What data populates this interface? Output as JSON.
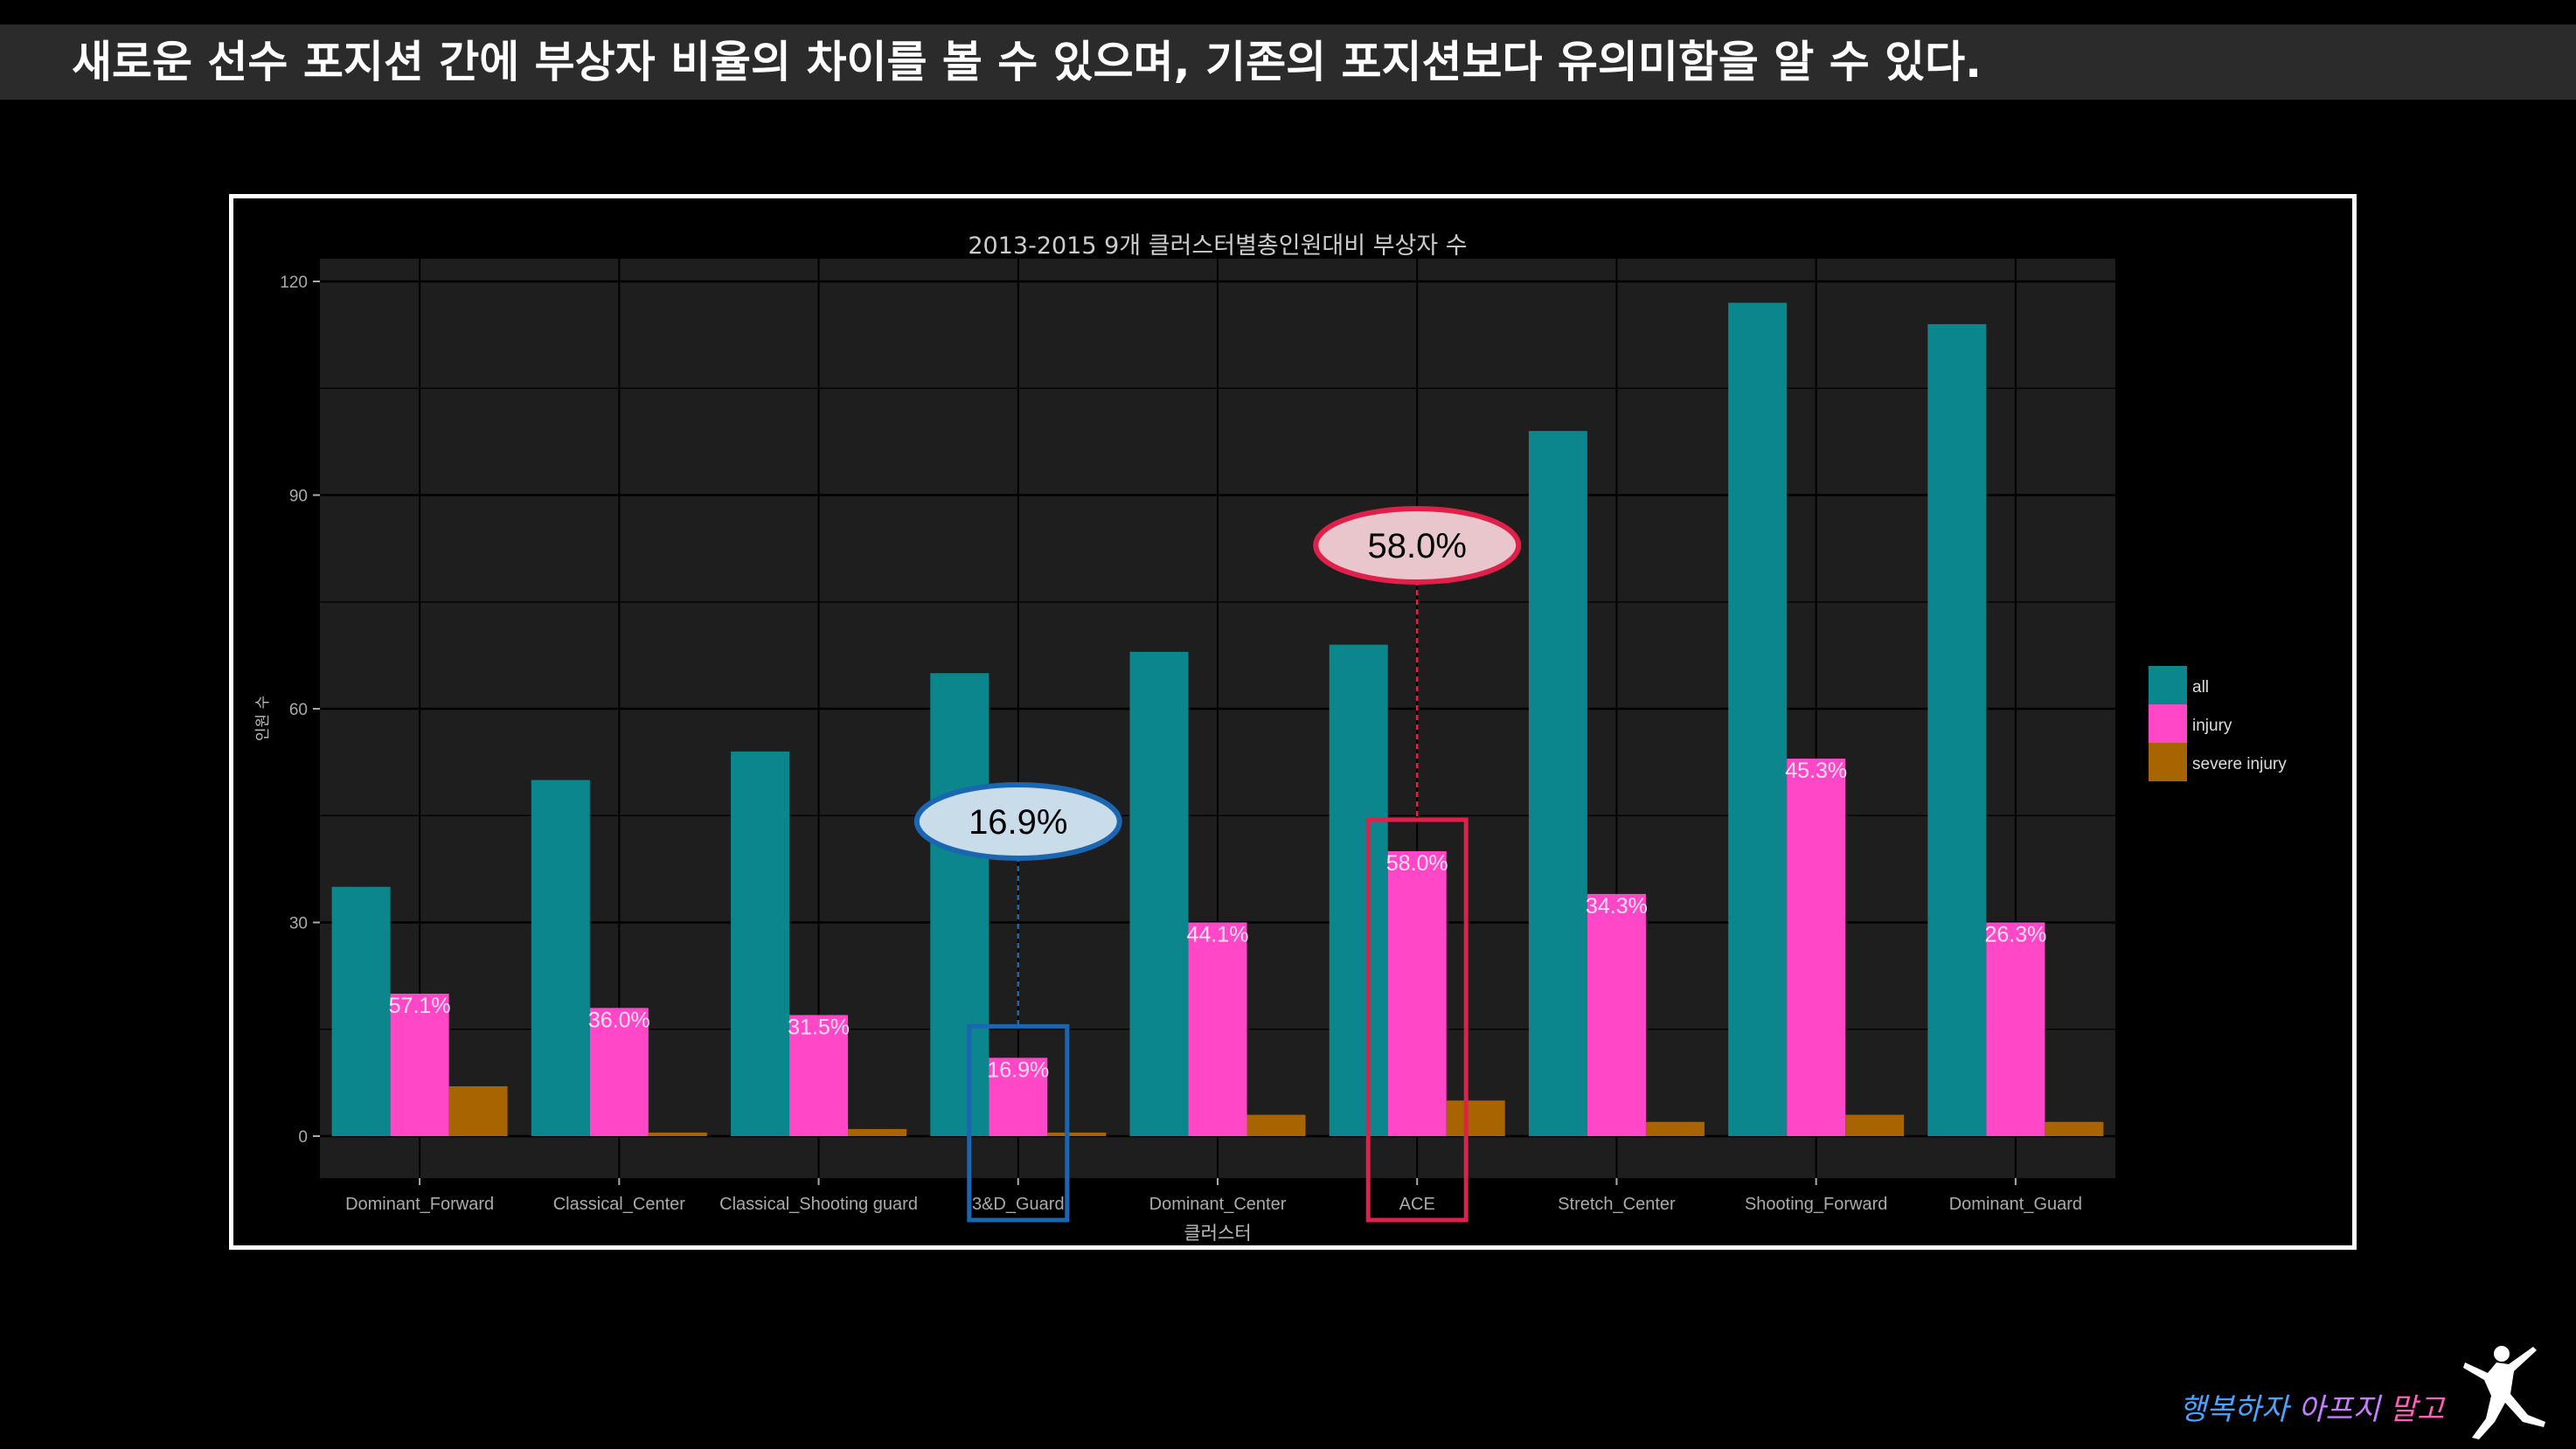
{
  "headline": "새로운 선수 포지션 간에 부상자 비율의 차이를 볼 수 있으며, 기존의 포지션보다 유의미함을 알 수 있다.",
  "colors": {
    "all": "#0a868c",
    "injury": "#ff47c8",
    "severe_injury": "#a86400",
    "panel": "#1e1e1e",
    "grid": "#000000",
    "highlight_blue": "#1a66b0",
    "highlight_red": "#e0204a"
  },
  "chart_data": {
    "type": "bar",
    "title": "2013-2015 9개 클러스터별총인원대비 부상자 수",
    "xlabel": "클러스터",
    "ylabel": "인원 수",
    "ylim": [
      0,
      120
    ],
    "yticks": [
      0,
      30,
      60,
      90,
      120
    ],
    "grid": true,
    "legend_position": "right",
    "categories": [
      "Dominant_Forward",
      "Classical_Center",
      "Classical_Shooting guard",
      "3&D_Guard",
      "Dominant_Center",
      "ACE",
      "Stretch_Center",
      "Shooting_Forward",
      "Dominant_Guard"
    ],
    "series": [
      {
        "name": "all",
        "values": [
          35,
          50,
          54,
          65,
          68,
          69,
          99,
          117,
          114
        ]
      },
      {
        "name": "injury",
        "values": [
          20,
          18,
          17,
          11,
          30,
          40,
          34,
          53,
          30
        ]
      },
      {
        "name": "severe injury",
        "values": [
          7,
          0.5,
          1,
          0.5,
          3,
          5,
          2,
          3,
          2
        ]
      }
    ],
    "data_labels": [
      "57.1%",
      "36.0%",
      "31.5%",
      "16.9%",
      "44.1%",
      "58.0%",
      "34.3%",
      "45.3%",
      "26.3%"
    ]
  },
  "callouts": [
    {
      "category": "3&D_Guard",
      "text": "16.9%",
      "color": "highlight_blue"
    },
    {
      "category": "ACE",
      "text": "58.0%",
      "color": "highlight_red"
    }
  ],
  "footer": {
    "part1": "행복하자",
    "part2": "아프지",
    "part3": "말고"
  },
  "logo_icon": "jumpman-logo-icon"
}
